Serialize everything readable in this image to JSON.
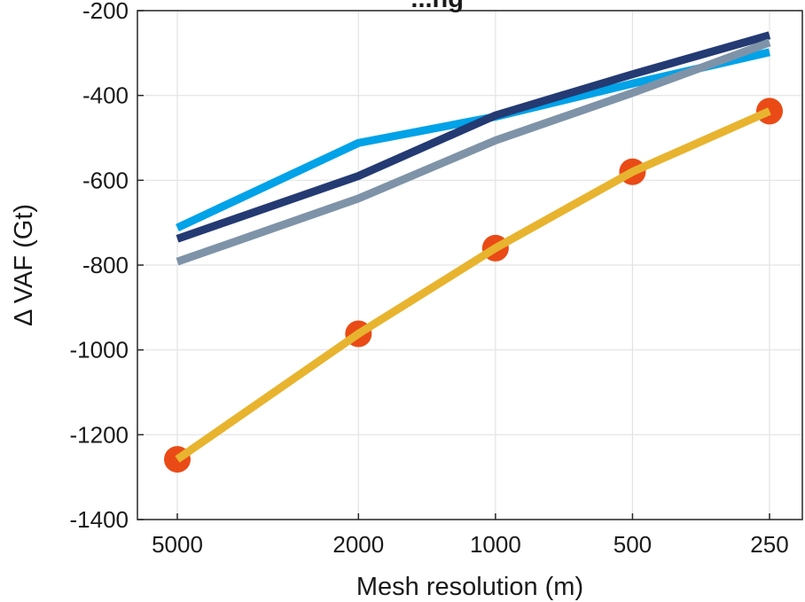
{
  "chart_data": {
    "type": "line",
    "title": "...ng",
    "xlabel": "Mesh resolution (m)",
    "ylabel": "Δ VAF (Gt)",
    "x_scale": "log, reversed",
    "categories": [
      "5000",
      "2000",
      "1000",
      "500",
      "250"
    ],
    "x": [
      5000,
      2000,
      1000,
      500,
      250
    ],
    "ylim": [
      -1400,
      -200
    ],
    "yticks": [
      "-200",
      "-400",
      "-600",
      "-800",
      "-1000",
      "-1200",
      "-1400"
    ],
    "grid": true,
    "series": [
      {
        "color": "#00a2e8",
        "values": [
          -712,
          -512,
          -450,
          -372,
          -298
        ]
      },
      {
        "color": "#243a73",
        "values": [
          -738,
          -590,
          -447,
          -350,
          -258
        ]
      },
      {
        "color": "#7e93a8",
        "values": [
          -792,
          -643,
          -506,
          -394,
          -275
        ]
      },
      {
        "color": "#e8b42f",
        "marker_color": "#ea4b16",
        "markers": true,
        "values": [
          -1258,
          -962,
          -760,
          -580,
          -437
        ]
      }
    ]
  }
}
